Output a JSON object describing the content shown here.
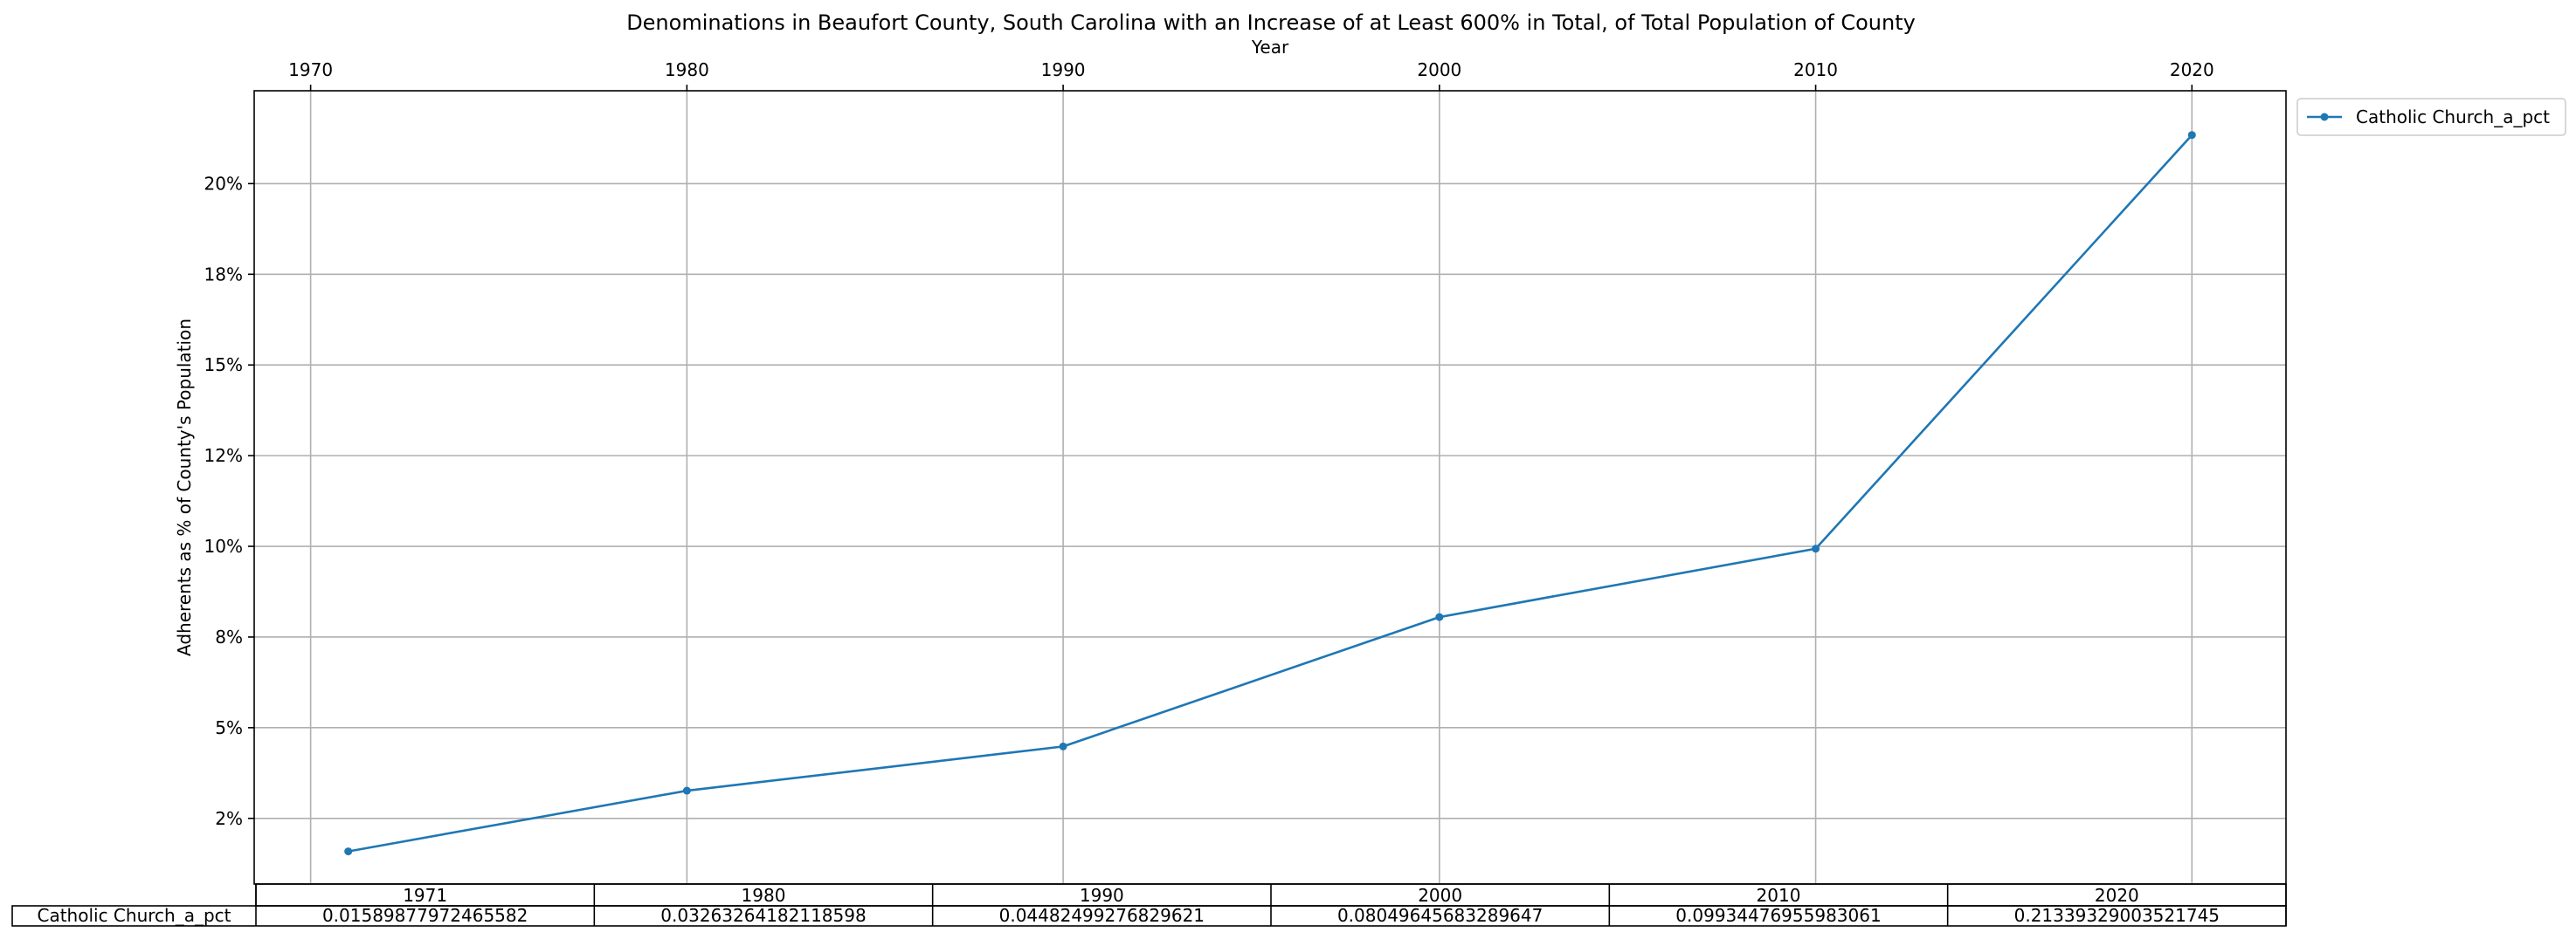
{
  "chart_data": {
    "type": "line",
    "title": "Denominations in Beaufort County, South Carolina with an Increase of at Least 600% in Total, of Total Population of County",
    "xlabel": "Year",
    "ylabel": "Adherents as % of County's Population",
    "x": [
      1971,
      1980,
      1990,
      2000,
      2010,
      2020
    ],
    "x_ticks": [
      1970,
      1980,
      1990,
      2000,
      2010,
      2020
    ],
    "x_tick_labels": [
      "1970",
      "1980",
      "1990",
      "2000",
      "2010",
      "2020"
    ],
    "xlim": [
      1968.5,
      2022.5
    ],
    "ylim": [
      0.0069,
      0.2256
    ],
    "y_ticks": [
      0.025,
      0.05,
      0.075,
      0.1,
      0.125,
      0.15,
      0.175,
      0.2
    ],
    "y_tick_labels": [
      "2%",
      "5%",
      "8%",
      "10%",
      "12%",
      "15%",
      "18%",
      "20%"
    ],
    "grid": true,
    "legend_position": "outside-top-right",
    "x_axis_position": "top",
    "series": [
      {
        "name": "Catholic Church_a_pct",
        "color": "#1f77b4",
        "marker": "dot",
        "values": [
          0.01589877972465582,
          0.03263264182118598,
          0.04482499276829621,
          0.08049645683289647,
          0.09934476955983061,
          0.21339329003521745
        ]
      }
    ],
    "table": {
      "columns": [
        "1971",
        "1980",
        "1990",
        "2000",
        "2010",
        "2020"
      ],
      "rows": [
        {
          "label": "Catholic Church_a_pct",
          "cells": [
            "0.01589877972465582",
            "0.03263264182118598",
            "0.04482499276829621",
            "0.08049645683289647",
            "0.09934476955983061",
            "0.21339329003521745"
          ]
        }
      ]
    }
  }
}
